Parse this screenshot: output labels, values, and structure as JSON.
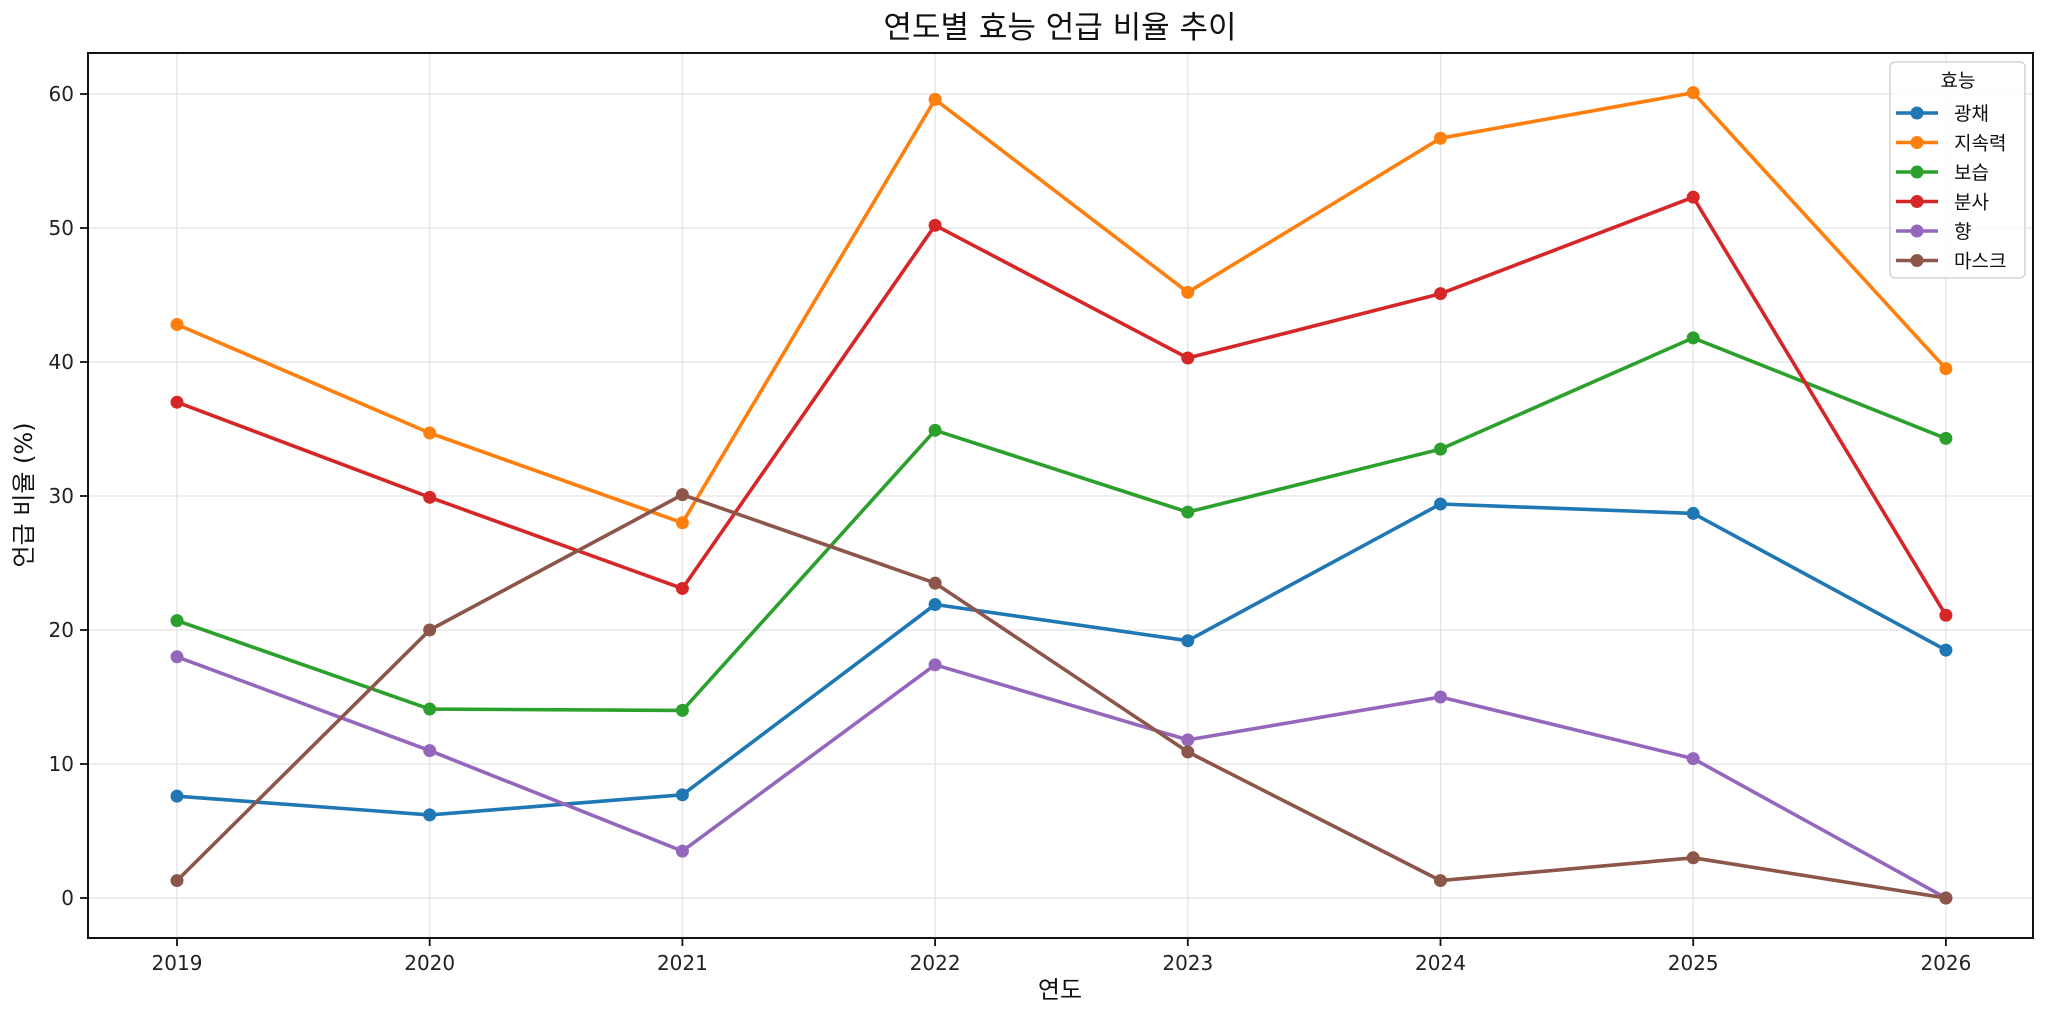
{
  "chart_data": {
    "type": "line",
    "title": "연도별 효능 언급 비율 추이",
    "xlabel": "연도",
    "ylabel": "언급 비율 (%)",
    "x": [
      2019,
      2020,
      2021,
      2022,
      2023,
      2024,
      2025,
      2026
    ],
    "xticks": [
      "2019",
      "2020",
      "2021",
      "2022",
      "2023",
      "2024",
      "2025",
      "2026"
    ],
    "yticks": [
      "0",
      "10",
      "20",
      "30",
      "40",
      "50",
      "60"
    ],
    "ylim": [
      -2.9,
      63.1
    ],
    "grid": true,
    "legend": {
      "title": "효능",
      "position": "upper right"
    },
    "series": [
      {
        "name": "광채",
        "color": "#1f77b4",
        "values": [
          7.6,
          6.2,
          7.7,
          21.9,
          19.2,
          29.4,
          28.7,
          18.5
        ]
      },
      {
        "name": "지속력",
        "color": "#ff7f0e",
        "values": [
          42.8,
          34.7,
          28.0,
          59.6,
          45.2,
          56.7,
          60.1,
          39.5
        ]
      },
      {
        "name": "보습",
        "color": "#2ca02c",
        "values": [
          20.7,
          14.1,
          14.0,
          34.9,
          28.8,
          33.5,
          41.8,
          34.3
        ]
      },
      {
        "name": "분사",
        "color": "#d62728",
        "values": [
          37.0,
          29.9,
          23.1,
          50.2,
          40.3,
          45.1,
          52.3,
          21.1
        ]
      },
      {
        "name": "향",
        "color": "#9467bd",
        "values": [
          18.0,
          11.0,
          3.5,
          17.4,
          11.8,
          15.0,
          10.4,
          0.0
        ]
      },
      {
        "name": "마스크",
        "color": "#8c564b",
        "values": [
          1.3,
          20.0,
          30.1,
          23.5,
          10.9,
          1.3,
          3.0,
          0.0
        ]
      }
    ]
  }
}
